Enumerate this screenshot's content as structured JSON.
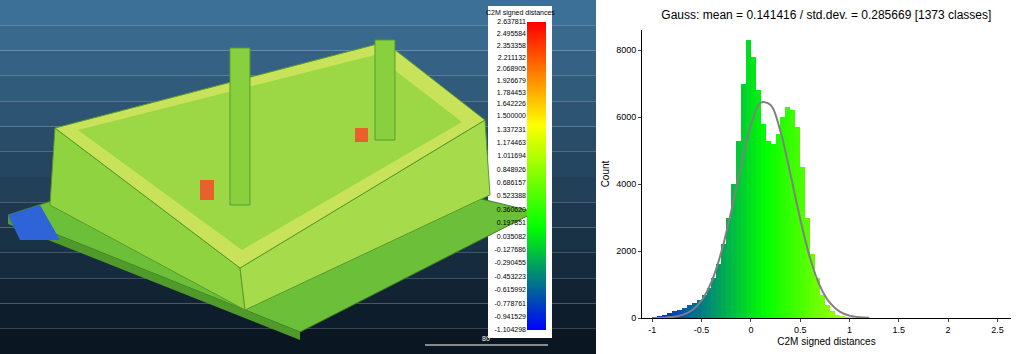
{
  "chart_data": [
    {
      "type": "heatmap",
      "title": "C2M signed distances",
      "colorbar": {
        "range": [
          -1.104298,
          2.637811
        ],
        "ticks": [
          2.637811,
          2.495584,
          2.353358,
          2.211132,
          2.068905,
          1.926679,
          1.784453,
          1.642226,
          {
            "value": 1.5,
            "label": "1.500000"
          },
          1.337231,
          1.174463,
          1.011694,
          0.848926,
          0.686157,
          0.523388,
          {
            "value": 0.36062,
            "label": "0.360620"
          },
          0.197851,
          0.035082,
          -0.127686,
          -0.290455,
          -0.453223,
          -0.615992,
          -0.778761,
          -0.941529,
          -1.104298
        ],
        "colors": [
          "#0000ff",
          "#00ff00",
          "#ffff00",
          "#ff0000"
        ]
      },
      "annotations": [
        "80"
      ]
    },
    {
      "type": "histogram",
      "title": "Gauss: mean = 0.141416 / std.dev. = 0.285669 [1373 classes]",
      "x_label": "C2M signed distances",
      "y_label": "Count",
      "bins": [
        -1.1,
        -1.05,
        -1,
        -0.95,
        -0.9,
        -0.85,
        -0.8,
        -0.75,
        -0.7,
        -0.65,
        -0.6,
        -0.55,
        -0.5,
        -0.45,
        -0.4,
        -0.35,
        -0.3,
        -0.25,
        -0.2,
        -0.15,
        -0.1,
        -0.05,
        0,
        0.05,
        0.1,
        0.15,
        0.2,
        0.25,
        0.3,
        0.35,
        0.4,
        0.45,
        0.5,
        0.55,
        0.6,
        0.65,
        0.7,
        0.75,
        0.8,
        0.85,
        0.9,
        0.95,
        1,
        1.05,
        1.1
      ],
      "values": [
        0,
        0,
        20,
        50,
        100,
        150,
        200,
        250,
        300,
        380,
        450,
        550,
        700,
        900,
        1200,
        1600,
        2200,
        3000,
        4000,
        5300,
        7000,
        8300,
        7800,
        6800,
        5800,
        5300,
        5200,
        5500,
        6000,
        6300,
        6200,
        5700,
        4500,
        3000,
        1900,
        1200,
        700,
        400,
        200,
        100,
        50,
        20,
        5,
        0
      ],
      "curve": {
        "x": [
          -1,
          -0.9,
          -0.8,
          -0.7,
          -0.6,
          -0.5,
          -0.4,
          -0.3,
          -0.2,
          -0.1,
          0,
          0.1,
          0.2,
          0.3,
          0.4,
          0.5,
          0.6,
          0.7,
          0.8,
          0.9,
          1,
          1.1,
          1.2
        ],
        "values": [
          2,
          8,
          28,
          85,
          224,
          522,
          1079,
          1968,
          3181,
          4546,
          5747,
          6429,
          6360,
          5568,
          4311,
          2954,
          1791,
          960,
          456,
          191,
          71,
          23,
          6
        ],
        "color": "#808080"
      },
      "xlim": [
        -1.104298,
        2.637811
      ],
      "xticks": [
        -1,
        -0.5,
        0,
        0.5,
        1,
        1.5,
        2,
        2.5
      ],
      "ylim": [
        0,
        8600
      ],
      "yticks": [
        0,
        2000,
        4000,
        6000,
        8000
      ],
      "grid": false
    }
  ]
}
